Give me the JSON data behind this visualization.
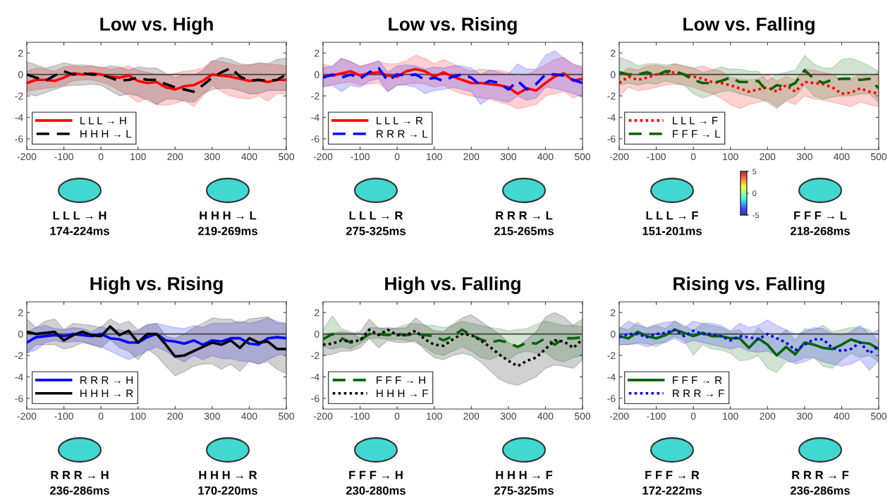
{
  "chart_data": [
    {
      "type": "line",
      "title": "Low vs. High",
      "x": [
        -200,
        -175,
        -150,
        -125,
        -100,
        -75,
        -50,
        -25,
        0,
        25,
        50,
        75,
        100,
        125,
        150,
        175,
        200,
        225,
        250,
        275,
        300,
        325,
        350,
        375,
        400,
        425,
        450,
        475,
        500
      ],
      "xlim": [
        -200,
        500
      ],
      "xticks": [
        -200,
        -100,
        0,
        100,
        200,
        300,
        400,
        500
      ],
      "ylim": [
        -7,
        3
      ],
      "yticks": [
        -6,
        -4,
        -2,
        0,
        2
      ],
      "grid": false,
      "legend": "bottom left",
      "marker": "none",
      "ref_lines": [
        {
          "axis": "y",
          "value": 0,
          "color": "#404040"
        }
      ],
      "annotations": [
        "L L L → H",
        "174-224ms",
        "H H H → L",
        "219-269ms"
      ],
      "series": [
        {
          "name": "L L L → H",
          "color": "#ff0000",
          "line_style": "solid",
          "values": [
            -0.8,
            -0.5,
            -0.5,
            -0.6,
            -0.3,
            0.1,
            0,
            0.1,
            0,
            -0.2,
            -0.3,
            -0.1,
            -0.6,
            -0.8,
            -0.7,
            -1.2,
            -1.4,
            -1.1,
            -1.0,
            -0.6,
            0,
            -0.1,
            -0.2,
            -0.4,
            -0.6,
            -0.5,
            -0.7,
            -0.5,
            -0.5
          ],
          "lower": [
            -1.6,
            -1.4,
            -1.3,
            -1.2,
            -1.0,
            -0.6,
            -0.5,
            -0.5,
            -0.7,
            -1.0,
            -1.5,
            -2.0,
            -2.6,
            -2.2,
            -2.8,
            -2.9,
            -2.7,
            -2.4,
            -3.0,
            -2.0,
            -1.0,
            -1.6,
            -2.0,
            -2.2,
            -2.3,
            -2.0,
            -2.5,
            -1.8,
            -1.8
          ],
          "upper": [
            0.3,
            0.6,
            0.5,
            0.3,
            0.7,
            0.8,
            0.7,
            0.8,
            0.7,
            0.5,
            0.6,
            0.8,
            0.4,
            0.2,
            0.0,
            -0.1,
            0.1,
            0.3,
            0.4,
            0.6,
            1.3,
            1.2,
            1.0,
            0.8,
            0.9,
            1.0,
            1.0,
            0.9,
            0.8
          ]
        },
        {
          "name": "H H H → L",
          "color": "#000000",
          "line_style": "dashed",
          "values": [
            0,
            -0.3,
            -0.6,
            -0.1,
            0.3,
            0,
            0.1,
            0,
            0,
            -0.3,
            -0.6,
            -0.5,
            -0.3,
            -0.5,
            -0.5,
            -0.9,
            -1.2,
            -1.4,
            -1.6,
            -1.0,
            -0.3,
            0.2,
            0.6,
            -0.2,
            -0.6,
            -0.5,
            -0.6,
            -0.5,
            0
          ],
          "lower": [
            -1.8,
            -2.0,
            -1.7,
            -1.4,
            -1.1,
            -1.0,
            -1.0,
            -0.9,
            -1.0,
            -1.5,
            -2.0,
            -1.8,
            -2.0,
            -2.4,
            -2.8,
            -2.3,
            -2.3,
            -2.5,
            -2.6,
            -1.8,
            -1.4,
            -1.3,
            -1.3,
            -1.5,
            -1.8,
            -1.8,
            -1.5,
            -1.5,
            -1.5
          ],
          "upper": [
            1.2,
            0.9,
            0.6,
            0.8,
            1.1,
            0.9,
            0.9,
            0.8,
            0.6,
            0.8,
            0.7,
            0.4,
            0.7,
            0.6,
            0.6,
            0.1,
            -0.3,
            0,
            -0.1,
            0.4,
            1.2,
            1.6,
            1.4,
            1.0,
            0.9,
            1.1,
            1.0,
            1.4,
            1.5
          ]
        }
      ]
    },
    {
      "type": "line",
      "title": "Low vs. Rising",
      "x": [
        -200,
        -175,
        -150,
        -125,
        -100,
        -75,
        -50,
        -25,
        0,
        25,
        50,
        75,
        100,
        125,
        150,
        175,
        200,
        225,
        250,
        275,
        300,
        325,
        350,
        375,
        400,
        425,
        450,
        475,
        500
      ],
      "xlim": [
        -200,
        500
      ],
      "xticks": [
        -200,
        -100,
        0,
        100,
        200,
        300,
        400,
        500
      ],
      "ylim": [
        -7,
        3
      ],
      "yticks": [
        -6,
        -4,
        -2,
        0,
        2
      ],
      "grid": false,
      "legend": "bottom left",
      "marker": "none",
      "ref_lines": [
        {
          "axis": "y",
          "value": 0,
          "color": "#404040"
        }
      ],
      "annotations": [
        "L L L → R",
        "275-325ms",
        "R R R → L",
        "215-265ms"
      ],
      "series": [
        {
          "name": "L L L → R",
          "color": "#ff0000",
          "line_style": "solid",
          "values": [
            -0.1,
            -0.1,
            0.1,
            0.3,
            -0.1,
            0.1,
            0.2,
            -0.1,
            -0.2,
            0.3,
            0.5,
            0.3,
            -0.2,
            0.2,
            -0.2,
            -0.5,
            -0.8,
            -0.8,
            -0.9,
            -1.0,
            -1.2,
            -1.8,
            -1.3,
            -1.5,
            -0.8,
            -0.2,
            0.1,
            -0.6,
            -0.4
          ],
          "lower": [
            -1.1,
            -1.0,
            -0.8,
            -0.7,
            -1.0,
            -0.9,
            -0.8,
            -1.6,
            -1.0,
            -0.9,
            -0.8,
            -0.9,
            -1.2,
            -1.0,
            -1.5,
            -1.8,
            -2.0,
            -2.2,
            -2.3,
            -2.6,
            -2.8,
            -3.2,
            -3.0,
            -2.8,
            -2.0,
            -1.8,
            -1.6,
            -2.2,
            -1.8
          ],
          "upper": [
            1.0,
            0.7,
            1.5,
            1.2,
            0.8,
            1.0,
            1.2,
            1.0,
            1.0,
            1.3,
            1.8,
            1.5,
            1.0,
            1.4,
            1.0,
            0.6,
            0.3,
            0.5,
            0.4,
            0.4,
            0.2,
            -0.2,
            0,
            0.4,
            0.9,
            1.4,
            1.6,
            0.9,
            0.8
          ]
        },
        {
          "name": "R R R → L",
          "color": "#0000ff",
          "line_style": "dashed",
          "values": [
            -0.3,
            0,
            -0.3,
            0,
            -0.4,
            0.2,
            0.6,
            -0.6,
            0,
            -0.1,
            0,
            -0.5,
            -0.3,
            -0.6,
            -0.2,
            0,
            -0.3,
            -1.0,
            -0.6,
            -0.8,
            -1.4,
            -0.6,
            -1.4,
            -0.9,
            0,
            0,
            -0.1,
            -0.5,
            -0.8
          ],
          "lower": [
            -1.2,
            -1.0,
            -1.6,
            -1.0,
            -1.2,
            -0.6,
            -0.4,
            -1.6,
            -1.0,
            -1.0,
            -1.2,
            -1.8,
            -1.5,
            -1.4,
            -1.2,
            -1.4,
            -1.6,
            -2.8,
            -2.2,
            -2.4,
            -2.6,
            -2.0,
            -2.4,
            -2.2,
            -1.2,
            -1.3,
            -1.5,
            -1.8,
            -2.1
          ],
          "upper": [
            0.6,
            0.8,
            1.5,
            1.2,
            0.7,
            1.0,
            1.3,
            0.2,
            0.8,
            0.9,
            0.8,
            0.5,
            0.7,
            0.6,
            0.8,
            0.8,
            0.6,
            0.0,
            0.4,
            0.2,
            0.0,
            1.0,
            0.5,
            0.5,
            1.8,
            2.2,
            1.5,
            1.0,
            0.6
          ]
        }
      ]
    },
    {
      "type": "line",
      "title": "Low vs. Falling",
      "x": [
        -200,
        -175,
        -150,
        -125,
        -100,
        -75,
        -50,
        -25,
        0,
        25,
        50,
        75,
        100,
        125,
        150,
        175,
        200,
        225,
        250,
        275,
        300,
        325,
        350,
        375,
        400,
        425,
        450,
        475,
        500
      ],
      "xlim": [
        -200,
        500
      ],
      "xticks": [
        -200,
        -100,
        0,
        100,
        200,
        300,
        400,
        500
      ],
      "ylim": [
        -7,
        3
      ],
      "yticks": [
        -6,
        -4,
        -2,
        0,
        2
      ],
      "grid": false,
      "legend": "bottom left",
      "marker": "none",
      "ref_lines": [
        {
          "axis": "y",
          "value": 0,
          "color": "#404040"
        }
      ],
      "annotations": [
        "L L L → F",
        "151-201ms",
        "F F F → L",
        "218-268ms"
      ],
      "clim": [
        -5,
        5
      ],
      "cticks": [
        -5,
        0,
        5
      ],
      "series": [
        {
          "name": "L L L → F",
          "color": "#ff0000",
          "line_style": "dotted",
          "values": [
            -0.8,
            -0.2,
            -0.5,
            -0.3,
            0,
            0.1,
            0.2,
            0,
            -0.2,
            -0.4,
            -0.7,
            -0.8,
            -1.0,
            -1.3,
            -1.6,
            -1.4,
            -1.2,
            -1.6,
            -1.0,
            -1.6,
            -0.7,
            -0.8,
            -0.9,
            -1.2,
            -1.8,
            -1.7,
            -1.3,
            -1.6,
            -1.8
          ],
          "lower": [
            -2.0,
            -1.2,
            -1.5,
            -1.4,
            -1.2,
            -1.0,
            -0.9,
            -1.0,
            -1.2,
            -1.5,
            -1.8,
            -2.2,
            -2.8,
            -3.2,
            -2.8,
            -2.6,
            -2.4,
            -3.0,
            -2.5,
            -2.8,
            -2.0,
            -2.3,
            -2.4,
            -2.6,
            -2.8,
            -3.0,
            -2.6,
            -2.8,
            -3.0
          ],
          "upper": [
            0,
            0.6,
            0.4,
            0.8,
            0.9,
            0.7,
            1.0,
            0.8,
            0.6,
            0.8,
            0.5,
            0.3,
            -0.3,
            -0.4,
            -0.5,
            -0.4,
            0,
            -0.6,
            -0.2,
            -0.5,
            0.5,
            0.4,
            0.2,
            0,
            -0.5,
            -0.4,
            0,
            -0.2,
            0.2
          ]
        },
        {
          "name": "F F F → L",
          "color": "#006400",
          "line_style": "dashed",
          "values": [
            0.2,
            0,
            0,
            0.2,
            -0.1,
            0.3,
            0.3,
            0,
            -0.5,
            -0.8,
            -0.8,
            -0.6,
            -0.3,
            -0.7,
            -0.7,
            -0.6,
            -1.6,
            -1.0,
            -1.2,
            -0.8,
            0.4,
            -0.4,
            -0.8,
            -0.5,
            -0.4,
            -0.4,
            -0.5,
            -0.4,
            -1.3
          ],
          "lower": [
            -1.0,
            -0.8,
            -1.0,
            -0.8,
            -0.9,
            -0.6,
            -0.8,
            -1.0,
            -1.8,
            -2.2,
            -1.9,
            -1.6,
            -1.5,
            -1.8,
            -2.0,
            -2.2,
            -2.6,
            -3.2,
            -2.4,
            -2.0,
            -1.0,
            -2.0,
            -2.3,
            -2.1,
            -2.0,
            -2.0,
            -1.8,
            -1.8,
            -2.6
          ],
          "upper": [
            1.6,
            1.3,
            0.8,
            1.0,
            1.0,
            0.9,
            1.0,
            0.8,
            0.6,
            0.2,
            0.4,
            0.7,
            0.5,
            0.5,
            0.3,
            0.3,
            -0.6,
            0,
            0.2,
            0.4,
            1.8,
            1.0,
            0.6,
            0.6,
            1.4,
            1.5,
            1.2,
            0.8,
            0.3
          ]
        }
      ]
    },
    {
      "type": "line",
      "title": "High vs. Rising",
      "x": [
        -200,
        -175,
        -150,
        -125,
        -100,
        -75,
        -50,
        -25,
        0,
        25,
        50,
        75,
        100,
        125,
        150,
        175,
        200,
        225,
        250,
        275,
        300,
        325,
        350,
        375,
        400,
        425,
        450,
        475,
        500
      ],
      "xlim": [
        -200,
        500
      ],
      "xticks": [
        -200,
        -100,
        0,
        100,
        200,
        300,
        400,
        500
      ],
      "ylim": [
        -7,
        3
      ],
      "yticks": [
        -6,
        -4,
        -2,
        0,
        2
      ],
      "grid": false,
      "legend": "bottom left",
      "marker": "none",
      "ref_lines": [
        {
          "axis": "y",
          "value": 0,
          "color": "#404040"
        }
      ],
      "annotations": [
        "R R R → H",
        "236-286ms",
        "H H H → R",
        "170-220ms"
      ],
      "series": [
        {
          "name": "R R R → H",
          "color": "#0000ff",
          "line_style": "solid",
          "values": [
            -0.8,
            -0.3,
            -0.2,
            -0.1,
            -0.2,
            0,
            -0.1,
            -0.2,
            0,
            -0.4,
            -0.5,
            -0.8,
            -0.8,
            -0.3,
            0,
            -0.6,
            -0.7,
            -0.9,
            -0.6,
            -1.0,
            -0.6,
            -0.7,
            -0.4,
            -0.4,
            -0.9,
            -1.0,
            -0.4,
            -0.3,
            -0.4
          ],
          "lower": [
            -1.8,
            -1.5,
            -0.8,
            -0.6,
            -0.8,
            -0.7,
            -0.7,
            -1.0,
            -1.2,
            -1.6,
            -2.0,
            -2.4,
            -2.0,
            -1.6,
            -1.2,
            -1.6,
            -2.2,
            -2.6,
            -2.0,
            -2.4,
            -2.0,
            -2.3,
            -2.3,
            -2.5,
            -2.6,
            -2.8,
            -2.4,
            -2.0,
            -1.8
          ],
          "upper": [
            0.2,
            0.6,
            0.8,
            0.5,
            0.4,
            0.6,
            0.5,
            0.2,
            0.7,
            0.4,
            0.4,
            0.2,
            0.3,
            0.8,
            1.0,
            0.8,
            0.6,
            0.5,
            0.8,
            0.6,
            1.0,
            1.0,
            1.0,
            1.2,
            1.0,
            1.2,
            1.5,
            1.2,
            1.0
          ]
        },
        {
          "name": "H H H → R",
          "color": "#000000",
          "line_style": "solid",
          "values": [
            0.2,
            0,
            0.1,
            0.2,
            -0.6,
            -0.1,
            0.2,
            -0.1,
            -0.2,
            0.7,
            -0.1,
            0.3,
            -0.8,
            0,
            0,
            -1.0,
            -2.1,
            -2.0,
            -1.6,
            -1.2,
            -0.8,
            -1.0,
            -0.6,
            -1.3,
            -0.4,
            -0.8,
            -0.7,
            -1.4,
            -1.4
          ],
          "lower": [
            -1.8,
            -1.0,
            -1.0,
            -1.0,
            -1.4,
            -1.2,
            -0.8,
            -1.0,
            -1.3,
            -0.5,
            -1.3,
            -1.6,
            -2.4,
            -1.4,
            -2.0,
            -3.0,
            -3.9,
            -3.5,
            -3.0,
            -2.8,
            -2.8,
            -3.3,
            -2.8,
            -3.5,
            -2.5,
            -2.8,
            -2.6,
            -3.3,
            -3.7
          ],
          "upper": [
            1.4,
            0.6,
            1.2,
            1.4,
            0.4,
            1.0,
            0.9,
            0.8,
            0.6,
            1.4,
            0.9,
            1.2,
            0.4,
            0.9,
            1.0,
            -0.2,
            -0.4,
            0,
            0.6,
            1.0,
            1.5,
            1.4,
            1.4,
            1.0,
            1.4,
            1.5,
            1.6,
            1.0,
            1.0
          ]
        }
      ]
    },
    {
      "type": "line",
      "title": "High vs. Falling",
      "x": [
        -200,
        -175,
        -150,
        -125,
        -100,
        -75,
        -50,
        -25,
        0,
        25,
        50,
        75,
        100,
        125,
        150,
        175,
        200,
        225,
        250,
        275,
        300,
        325,
        350,
        375,
        400,
        425,
        450,
        475,
        500
      ],
      "xlim": [
        -200,
        500
      ],
      "xticks": [
        -200,
        -100,
        0,
        100,
        200,
        300,
        400,
        500
      ],
      "ylim": [
        -7,
        3
      ],
      "yticks": [
        -6,
        -4,
        -2,
        0,
        2
      ],
      "grid": false,
      "legend": "bottom left",
      "marker": "none",
      "ref_lines": [
        {
          "axis": "y",
          "value": 0,
          "color": "#404040"
        }
      ],
      "annotations": [
        "F F F → H",
        "230-280ms",
        "H H H → F",
        "275-325ms"
      ],
      "series": [
        {
          "name": "F F F → H",
          "color": "#006400",
          "line_style": "dashed",
          "values": [
            -0.5,
            0,
            -0.4,
            -0.8,
            -0.6,
            0,
            0,
            -0.1,
            0,
            -0.1,
            0,
            -0.1,
            -0.2,
            -0.6,
            -0.2,
            0.4,
            -0.1,
            -0.5,
            -0.8,
            -0.6,
            -0.8,
            -1.2,
            -0.8,
            -0.9,
            -0.4,
            -1.0,
            -0.4,
            -0.4,
            -0.3
          ],
          "lower": [
            -1.2,
            -1.4,
            -1.2,
            -1.4,
            -0.9,
            -0.4,
            -0.4,
            -0.5,
            -0.5,
            -0.6,
            -0.8,
            -1.2,
            -1.8,
            -2.0,
            -1.6,
            -1.2,
            -1.6,
            -2.2,
            -2.4,
            -2.0,
            -2.4,
            -1.8,
            -1.6,
            -1.8,
            -1.7,
            -2.4,
            -2.6,
            -2.2,
            -2.0
          ],
          "upper": [
            0.4,
            1.7,
            0.5,
            0.2,
            -0.4,
            0.6,
            0.6,
            0.4,
            0.6,
            0.9,
            1.0,
            0.8,
            0.8,
            0.6,
            0.8,
            1.2,
            1.0,
            0.8,
            0.6,
            0.5,
            0.3,
            0.4,
            0.5,
            0.9,
            1.2,
            1.0,
            0.8,
            0.8,
            0.7
          ]
        },
        {
          "name": "H H H → F",
          "color": "#000000",
          "line_style": "dotted",
          "values": [
            -1.0,
            -0.9,
            -0.6,
            -0.7,
            -0.6,
            0.4,
            -0.1,
            0.4,
            -0.1,
            -0.1,
            0.3,
            -0.5,
            -1.0,
            -1.1,
            -0.5,
            0,
            -0.1,
            -0.6,
            -1.2,
            -1.9,
            -2.5,
            -3.0,
            -2.5,
            -2.2,
            -1.4,
            -0.6,
            -0.7,
            -1.3,
            -0.5
          ],
          "lower": [
            -2.0,
            -1.9,
            -1.6,
            -1.6,
            -1.3,
            -0.4,
            -1.3,
            -0.6,
            -0.8,
            -0.8,
            -0.6,
            -1.5,
            -2.2,
            -2.4,
            -2.0,
            -1.8,
            -2.0,
            -2.6,
            -3.4,
            -4.2,
            -4.6,
            -4.8,
            -4.4,
            -4.0,
            -3.2,
            -2.9,
            -3.0,
            -3.2,
            -2.4
          ],
          "upper": [
            0,
            0.1,
            0.2,
            0.1,
            0.2,
            1.4,
            0.5,
            0.6,
            0.5,
            0.6,
            1.5,
            0.8,
            0.3,
            0.2,
            0.9,
            1.5,
            1.8,
            1.2,
            0.6,
            0,
            -0.8,
            -1.2,
            -0.5,
            0.2,
            1.6,
            2.0,
            1.6,
            0.8,
            1.4
          ]
        }
      ]
    },
    {
      "type": "line",
      "title": "Rising vs. Falling",
      "x": [
        -200,
        -175,
        -150,
        -125,
        -100,
        -75,
        -50,
        -25,
        0,
        25,
        50,
        75,
        100,
        125,
        150,
        175,
        200,
        225,
        250,
        275,
        300,
        325,
        350,
        375,
        400,
        425,
        450,
        475,
        500
      ],
      "xlim": [
        -200,
        500
      ],
      "xticks": [
        -200,
        -100,
        0,
        100,
        200,
        300,
        400,
        500
      ],
      "ylim": [
        -7,
        3
      ],
      "yticks": [
        -6,
        -4,
        -2,
        0,
        2
      ],
      "grid": false,
      "legend": "bottom left",
      "marker": "none",
      "ref_lines": [
        {
          "axis": "y",
          "value": 0,
          "color": "#404040"
        }
      ],
      "annotations": [
        "F F F → R",
        "172-222ms",
        "R R R → F",
        "236-286ms"
      ],
      "series": [
        {
          "name": "F F F → R",
          "color": "#006400",
          "line_style": "solid",
          "values": [
            -0.2,
            -0.4,
            0.2,
            -0.2,
            -0.4,
            -0.1,
            0.4,
            0.1,
            -0.2,
            0.1,
            -0.2,
            -0.2,
            -0.4,
            -0.4,
            -1.3,
            -0.4,
            -1.0,
            -2.0,
            -1.2,
            -1.9,
            -0.8,
            -1.0,
            -1.3,
            -1.4,
            -1.0,
            -0.5,
            -0.8,
            -0.9,
            -1.4
          ],
          "lower": [
            -1.0,
            -1.0,
            -0.8,
            -0.9,
            -1.2,
            -0.7,
            -0.2,
            -0.6,
            -2.0,
            -1.0,
            -1.4,
            -1.5,
            -1.8,
            -2.5,
            -2.4,
            -2.0,
            -3.2,
            -3.6,
            -2.6,
            -2.6,
            -2.2,
            -2.2,
            -3.0,
            -3.2,
            -2.4,
            -1.8,
            -2.2,
            -2.0,
            -2.6
          ],
          "upper": [
            0.6,
            0.4,
            1.1,
            0.5,
            0.8,
            0.5,
            1.2,
            0.8,
            0.3,
            1.0,
            0.8,
            0.6,
            0.2,
            0.4,
            -0.6,
            0.6,
            -0.2,
            -0.4,
            0.4,
            -0.6,
            0.5,
            0.4,
            0.8,
            0.2,
            0.4,
            0.6,
            0.6,
            0.4,
            -0.8
          ]
        },
        {
          "name": "R R R → F",
          "color": "#0000ff",
          "line_style": "dotted",
          "values": [
            -0.3,
            0,
            0,
            -0.3,
            0,
            0.1,
            0.4,
            -0.2,
            0.3,
            0,
            0,
            -0.2,
            -0.6,
            -0.2,
            -0.3,
            -0.5,
            0,
            -0.4,
            -0.8,
            -1.5,
            -1.0,
            -0.5,
            -0.5,
            -1.3,
            -1.6,
            -1.4,
            -0.8,
            -1.8,
            -1.1
          ],
          "lower": [
            -1.0,
            -1.0,
            -0.9,
            -1.2,
            -0.9,
            -0.8,
            -0.4,
            -0.9,
            -0.6,
            -0.8,
            -1.0,
            -1.2,
            -1.4,
            -1.2,
            -1.6,
            -1.7,
            -1.6,
            -2.0,
            -2.4,
            -2.8,
            -2.6,
            -2.2,
            -2.6,
            -2.8,
            -3.0,
            -2.8,
            -2.4,
            -3.4,
            -2.5
          ],
          "upper": [
            0.5,
            1.2,
            0.8,
            0.6,
            0.9,
            1.1,
            1.2,
            0.6,
            1.2,
            1.0,
            1.0,
            0.8,
            0.3,
            1.0,
            0.6,
            0.8,
            1.3,
            0.8,
            0.4,
            0,
            0.2,
            0.6,
            0.5,
            0.0,
            -0.1,
            0.2,
            0.8,
            0.0,
            0.4
          ]
        }
      ]
    }
  ]
}
